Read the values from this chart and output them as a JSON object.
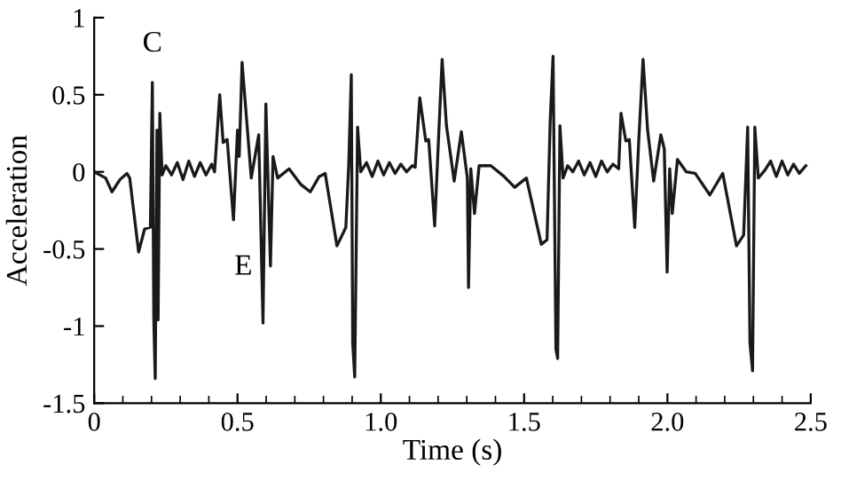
{
  "chart_data": {
    "type": "line",
    "xlabel": "Time (s)",
    "ylabel": "Acceleration",
    "xlim": [
      0,
      2.5
    ],
    "ylim": [
      -1.5,
      1
    ],
    "xticks": [
      0,
      0.5,
      {
        "value": 1.0,
        "label": "1.0"
      },
      1.5,
      {
        "value": 2.0,
        "label": "2.0"
      },
      2.5
    ],
    "yticks": [
      -1.5,
      -1,
      -0.5,
      0,
      0.5,
      1
    ],
    "grid": false,
    "marker": "none",
    "line_style": "solid",
    "annotations": [
      {
        "text": "C",
        "x": 0.203,
        "y": 0.58
      },
      {
        "text": "E",
        "x": 0.486,
        "y": -0.31
      }
    ],
    "series": [
      {
        "color": "#1a1a1a",
        "x": [
          0.0,
          0.04,
          0.062,
          0.09,
          0.114,
          0.124,
          0.155,
          0.176,
          0.196,
          0.203,
          0.208,
          0.213,
          0.219,
          0.223,
          0.229,
          0.237,
          0.25,
          0.27,
          0.29,
          0.31,
          0.33,
          0.35,
          0.37,
          0.39,
          0.41,
          0.42,
          0.438,
          0.45,
          0.464,
          0.486,
          0.5,
          0.506,
          0.516,
          0.548,
          0.574,
          0.589,
          0.599,
          0.615,
          0.624,
          0.64,
          0.68,
          0.72,
          0.754,
          0.785,
          0.806,
          0.847,
          0.878,
          0.888,
          0.897,
          0.902,
          0.909,
          0.919,
          0.93,
          0.95,
          0.97,
          0.99,
          1.01,
          1.03,
          1.05,
          1.07,
          1.09,
          1.11,
          1.12,
          1.136,
          1.157,
          1.167,
          1.188,
          1.202,
          1.214,
          1.229,
          1.256,
          1.281,
          1.302,
          1.306,
          1.314,
          1.327,
          1.343,
          1.384,
          1.43,
          1.467,
          1.508,
          1.56,
          1.58,
          1.591,
          1.601,
          1.611,
          1.617,
          1.625,
          1.636,
          1.652,
          1.67,
          1.69,
          1.71,
          1.73,
          1.75,
          1.77,
          1.79,
          1.81,
          1.83,
          1.838,
          1.855,
          1.867,
          1.886,
          1.9,
          1.915,
          1.931,
          1.952,
          1.977,
          1.989,
          1.999,
          2.008,
          2.017,
          2.035,
          2.066,
          2.097,
          2.148,
          2.193,
          2.241,
          2.266,
          2.28,
          2.288,
          2.297,
          2.305,
          2.317,
          2.34,
          2.36,
          2.38,
          2.4,
          2.42,
          2.44,
          2.46,
          2.483
        ],
        "values": [
          0.0,
          -0.04,
          -0.13,
          -0.05,
          -0.01,
          -0.04,
          -0.52,
          -0.37,
          -0.36,
          0.58,
          -0.96,
          -1.34,
          0.27,
          -0.96,
          0.38,
          -0.02,
          0.04,
          -0.02,
          0.06,
          -0.05,
          0.07,
          -0.03,
          0.06,
          -0.02,
          0.05,
          0.0,
          0.5,
          0.19,
          0.21,
          -0.31,
          0.27,
          0.1,
          0.71,
          -0.04,
          0.24,
          -0.98,
          0.44,
          -0.61,
          0.1,
          -0.04,
          0.02,
          -0.08,
          -0.13,
          -0.03,
          -0.01,
          -0.48,
          -0.36,
          0.04,
          0.63,
          -1.11,
          -1.33,
          0.29,
          0.0,
          0.06,
          -0.03,
          0.07,
          -0.02,
          0.06,
          -0.01,
          0.05,
          0.0,
          0.04,
          0.03,
          0.48,
          0.2,
          0.21,
          -0.35,
          0.24,
          0.73,
          0.3,
          -0.06,
          0.26,
          -0.04,
          -0.75,
          0.02,
          -0.27,
          0.04,
          0.04,
          -0.03,
          -0.1,
          -0.04,
          -0.47,
          -0.44,
          0.33,
          0.75,
          -1.15,
          -1.21,
          0.3,
          -0.04,
          0.04,
          0.0,
          0.07,
          -0.02,
          0.06,
          -0.03,
          0.07,
          0.0,
          0.05,
          0.02,
          0.38,
          0.2,
          0.21,
          -0.36,
          0.2,
          0.73,
          0.27,
          -0.06,
          0.24,
          0.15,
          -0.65,
          0.02,
          -0.27,
          0.08,
          0.0,
          -0.01,
          -0.15,
          -0.01,
          -0.48,
          -0.41,
          0.29,
          -1.11,
          -1.29,
          0.29,
          -0.04,
          0.01,
          0.07,
          -0.03,
          0.07,
          -0.02,
          0.05,
          -0.01,
          0.04
        ]
      }
    ]
  }
}
